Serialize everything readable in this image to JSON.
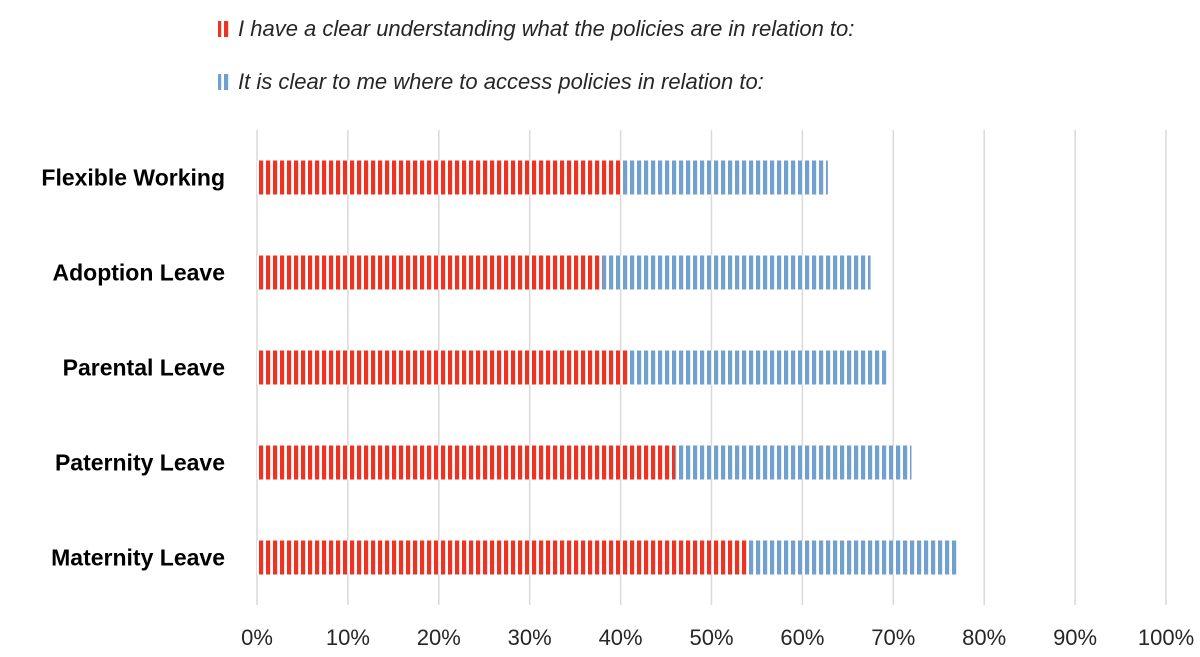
{
  "chart_data": {
    "type": "bar",
    "orientation": "horizontal",
    "stacked": true,
    "categories": [
      "Flexible Working",
      "Adoption Leave",
      "Parental Leave",
      "Paternity Leave",
      "Maternity Leave"
    ],
    "series": [
      {
        "name": "I have a clear understanding what the policies are in relation to:",
        "values": [
          40,
          38,
          41,
          46,
          54
        ],
        "color": "#EE3322",
        "pattern": "vertical-stripes"
      },
      {
        "name": "It is clear to me where to access policies in relation to:",
        "values": [
          22.8,
          29.5,
          28.5,
          26,
          23
        ],
        "color": "#6FA0D0",
        "pattern": "vertical-stripes"
      }
    ],
    "xlim": [
      0,
      100
    ],
    "x_ticks": [
      "0%",
      "10%",
      "20%",
      "30%",
      "40%",
      "50%",
      "60%",
      "70%",
      "80%",
      "90%",
      "100%"
    ],
    "grid": true,
    "legend_position": "top"
  }
}
